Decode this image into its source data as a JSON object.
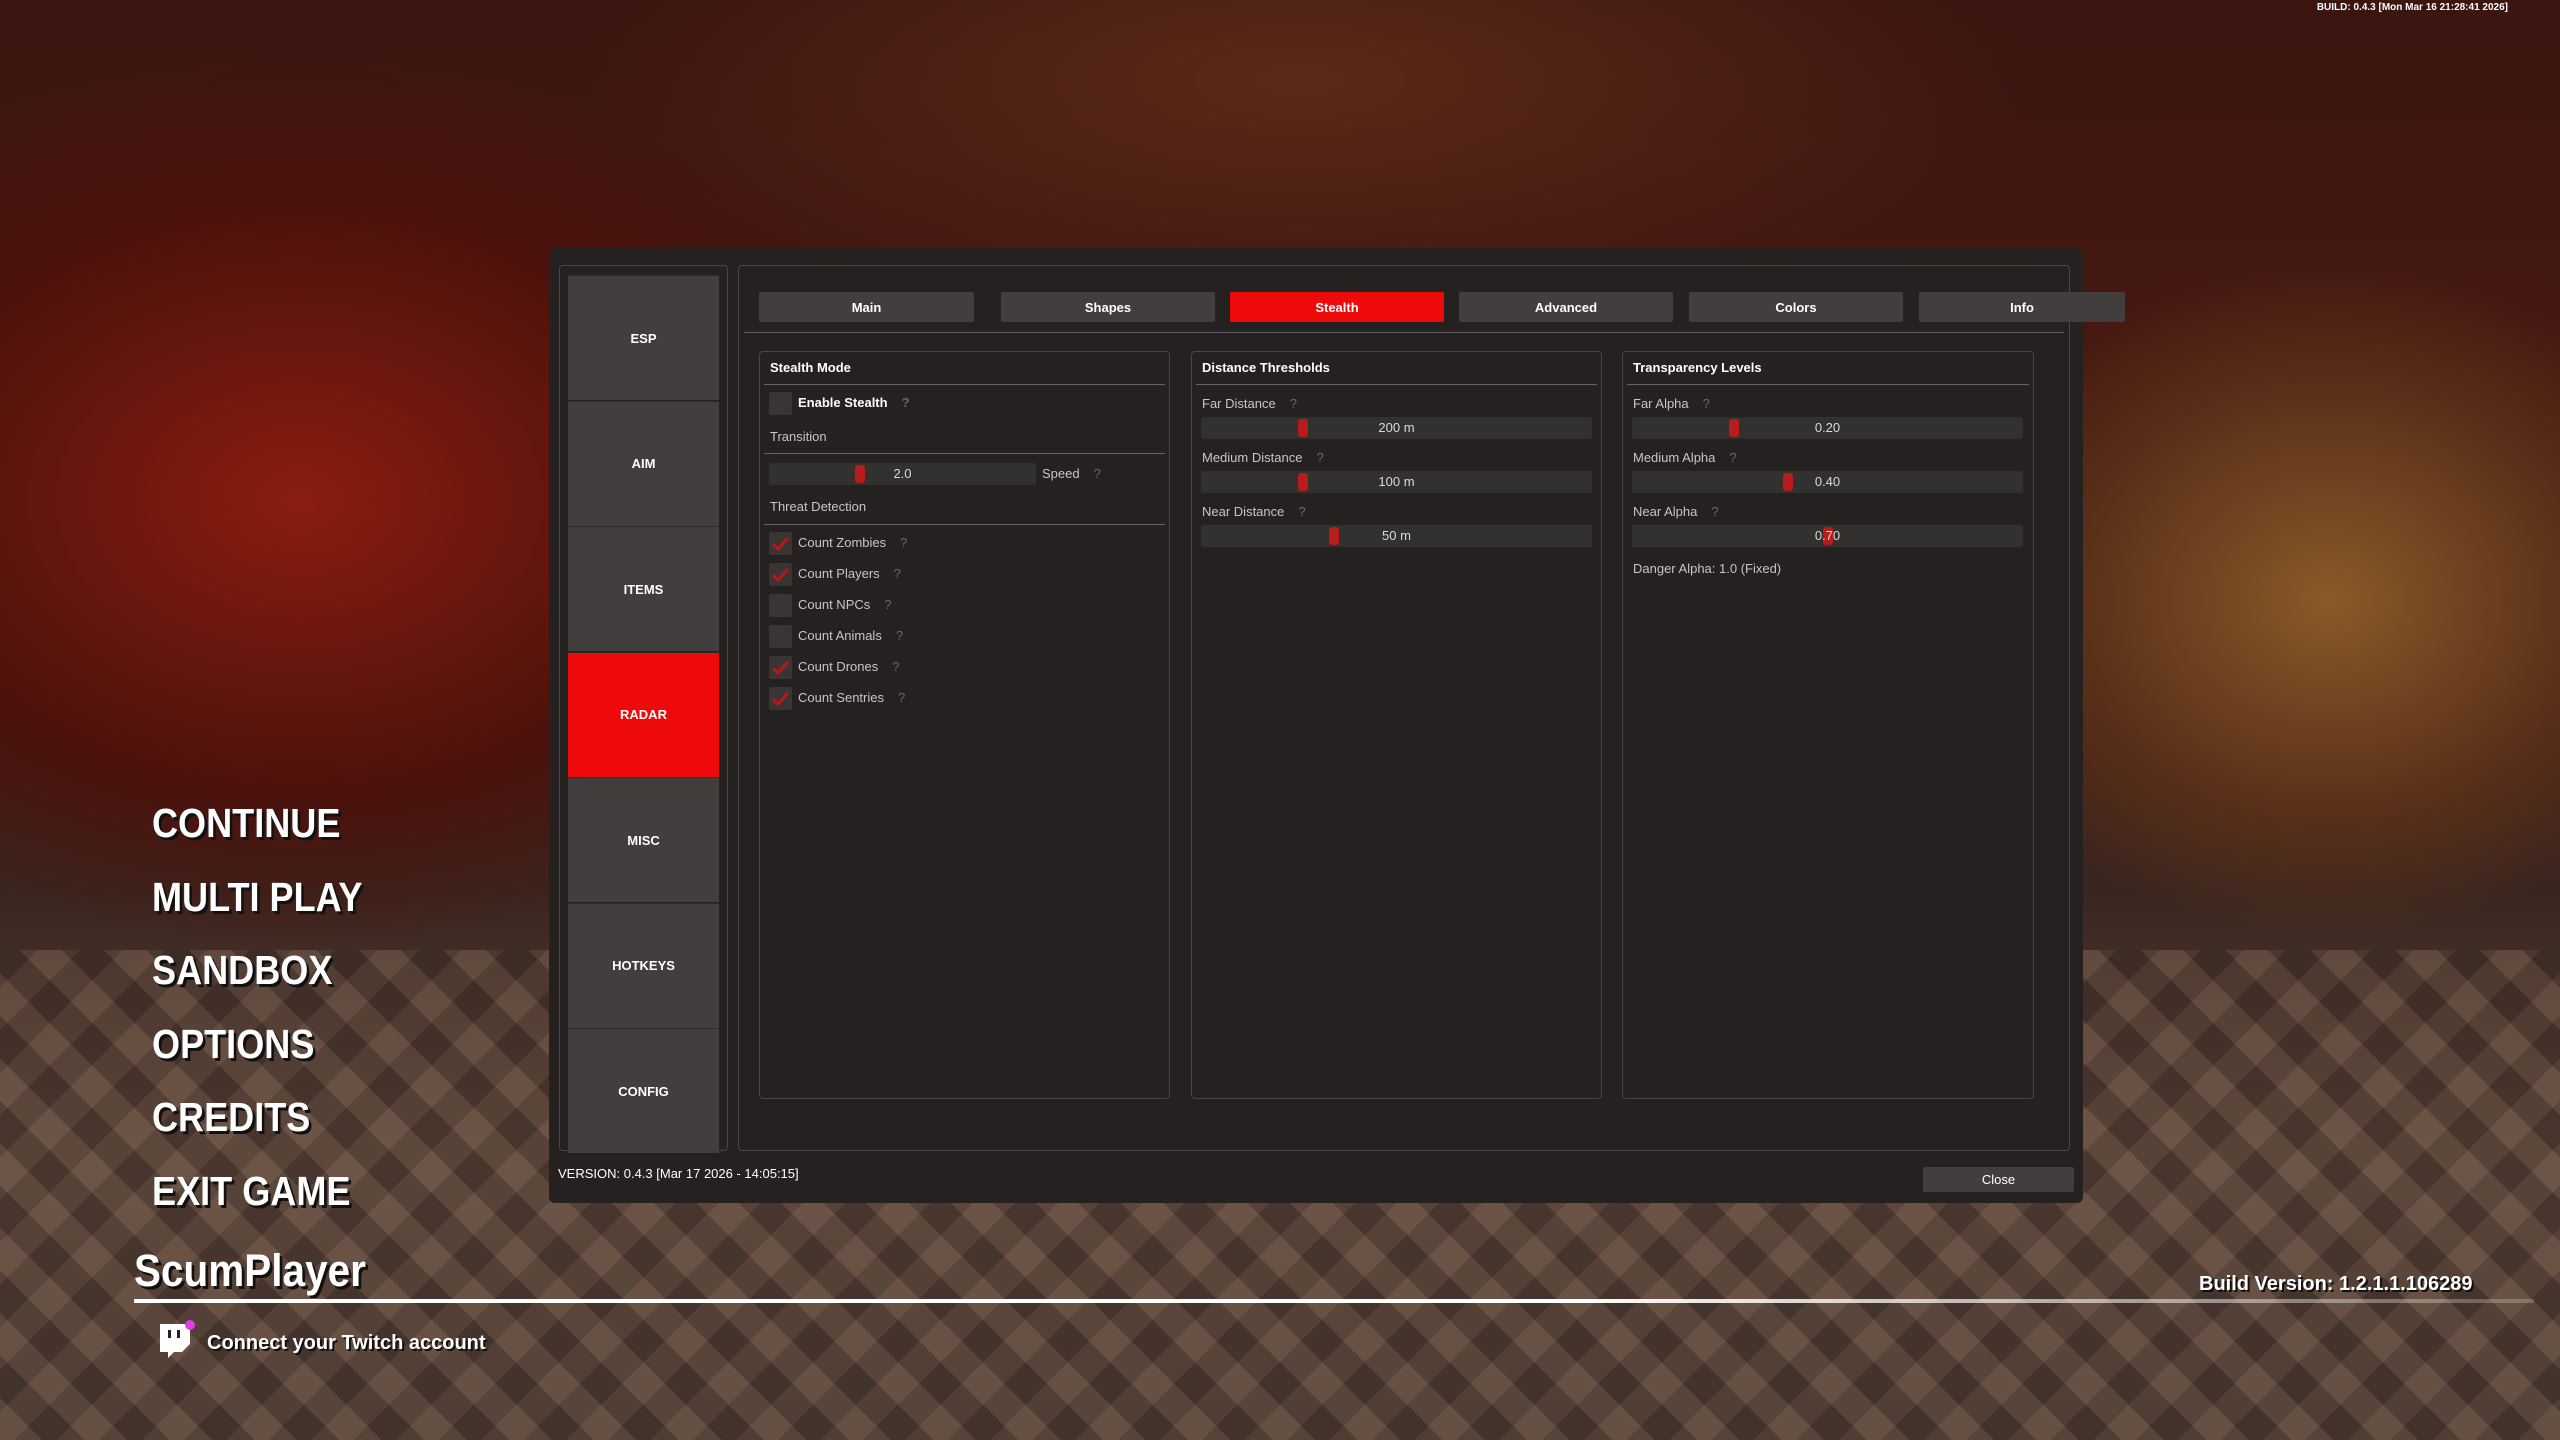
{
  "top_build": "BUILD: 0.4.3 [Mon Mar 16 21:28:41 2026]",
  "main_menu": [
    "CONTINUE",
    "MULTI PLAY",
    "SANDBOX",
    "OPTIONS",
    "CREDITS",
    "EXIT GAME"
  ],
  "player_name": "ScumPlayer",
  "twitch": {
    "label": "Connect your Twitch account",
    "icon": "twitch-icon",
    "badge_color": "#e040e0"
  },
  "build_version": "Build Version:  1.2.1.1.106289",
  "overlay": {
    "accent_color": "#ee0a0a",
    "sidebar": [
      "ESP",
      "AIM",
      "ITEMS",
      "RADAR",
      "MISC",
      "HOTKEYS",
      "CONFIG"
    ],
    "sidebar_active": "RADAR",
    "tabs": [
      "Main",
      "Shapes",
      "Stealth",
      "Advanced",
      "Colors",
      "Info"
    ],
    "tab_active": "Stealth",
    "stealth_mode": {
      "title": "Stealth Mode",
      "enable": {
        "label": "Enable Stealth",
        "checked": false
      },
      "transition_title": "Transition",
      "speed": {
        "value": "2.0",
        "label": "Speed",
        "position": 0.34
      },
      "threat_title": "Threat Detection",
      "threats": [
        {
          "label": "Count Zombies",
          "checked": true
        },
        {
          "label": "Count Players",
          "checked": true
        },
        {
          "label": "Count NPCs",
          "checked": false
        },
        {
          "label": "Count Animals",
          "checked": false
        },
        {
          "label": "Count Drones",
          "checked": true
        },
        {
          "label": "Count Sentries",
          "checked": true
        }
      ]
    },
    "distance": {
      "title": "Distance Thresholds",
      "sliders": [
        {
          "label": "Far Distance",
          "value": "200 m",
          "position": 0.26
        },
        {
          "label": "Medium Distance",
          "value": "100 m",
          "position": 0.26
        },
        {
          "label": "Near Distance",
          "value": "50 m",
          "position": 0.34
        }
      ]
    },
    "transparency": {
      "title": "Transparency Levels",
      "sliders": [
        {
          "label": "Far Alpha",
          "value": "0.20",
          "position": 0.26
        },
        {
          "label": "Medium Alpha",
          "value": "0.40",
          "position": 0.4
        },
        {
          "label": "Near Alpha",
          "value": "0.70",
          "position": 0.5
        }
      ],
      "danger_note": "Danger Alpha: 1.0 (Fixed)"
    },
    "help_mark": "?",
    "version": "VERSION: 0.4.3 [Mar 17 2026 - 14:05:15]",
    "close_label": "Close"
  }
}
